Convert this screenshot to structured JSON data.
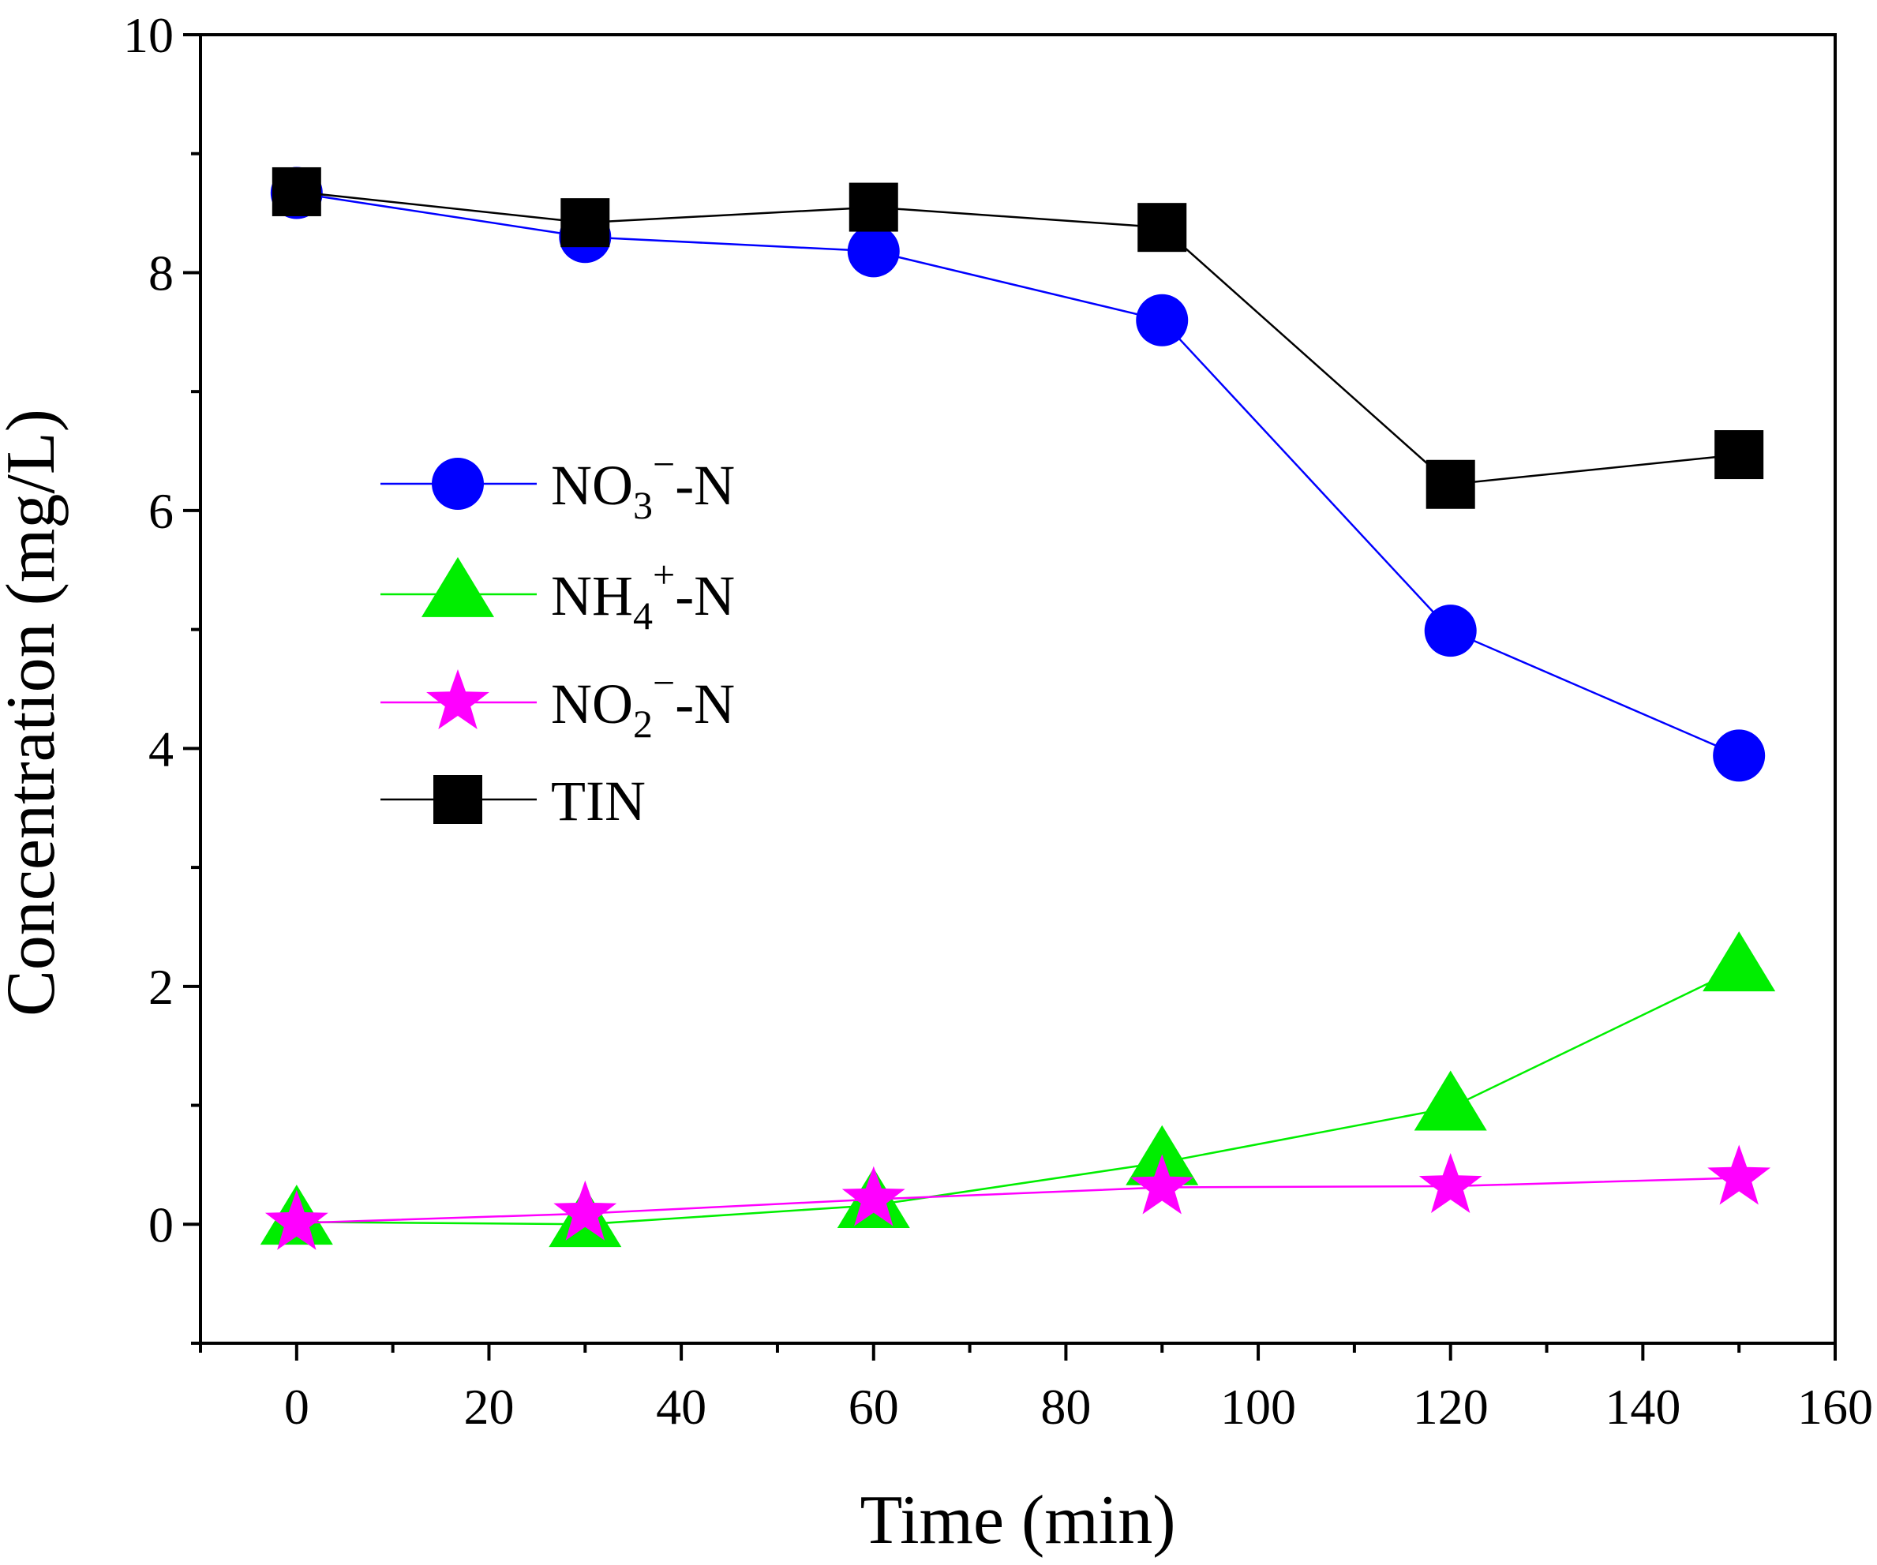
{
  "chart_data": {
    "type": "line",
    "title": "",
    "xlabel": "Time (min)",
    "ylabel": "Concentration (mg/L)",
    "xlim": [
      -10,
      160
    ],
    "ylim": [
      -1,
      10
    ],
    "xticks": [
      0,
      20,
      40,
      60,
      80,
      100,
      120,
      140,
      160
    ],
    "xtick_labels": [
      "0",
      "20",
      "40",
      "60",
      "80",
      "100",
      "120",
      "140",
      "160"
    ],
    "yticks": [
      0,
      2,
      4,
      6,
      8,
      10
    ],
    "ytick_labels": [
      "0",
      "2",
      "4",
      "6",
      "8",
      "10"
    ],
    "grid": false,
    "legend_position": "middle-left",
    "x": [
      0,
      30,
      60,
      90,
      120,
      150
    ],
    "series": [
      {
        "id": "no3",
        "label_main": "NO",
        "label_sub": "3",
        "label_sup": "−",
        "label_tail": "-N",
        "marker": "circle",
        "color": "#0000ff",
        "values": [
          8.67,
          8.3,
          8.18,
          7.6,
          4.99,
          3.94
        ]
      },
      {
        "id": "nh4",
        "label_main": "NH",
        "label_sub": "4",
        "label_sup": "+",
        "label_tail": "-N",
        "marker": "triangle",
        "color": "#00ee00",
        "values": [
          0.02,
          0.0,
          0.16,
          0.52,
          0.98,
          2.15
        ]
      },
      {
        "id": "no2",
        "label_main": "NO",
        "label_sub": "2",
        "label_sup": "−",
        "label_tail": "-N",
        "marker": "star",
        "color": "#ff00ff",
        "values": [
          0.01,
          0.09,
          0.21,
          0.31,
          0.32,
          0.39
        ]
      },
      {
        "id": "tin",
        "label_main": "TIN",
        "label_sub": "",
        "label_sup": "",
        "label_tail": "",
        "marker": "square",
        "color": "#000000",
        "values": [
          8.68,
          8.42,
          8.55,
          8.38,
          6.22,
          6.47
        ]
      }
    ]
  }
}
